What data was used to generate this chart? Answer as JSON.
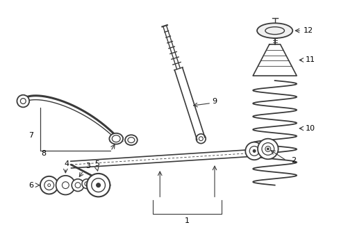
{
  "bg_color": "#ffffff",
  "line_color": "#3a3a3a",
  "label_color": "#000000",
  "fig_width": 4.89,
  "fig_height": 3.6,
  "dpi": 100
}
